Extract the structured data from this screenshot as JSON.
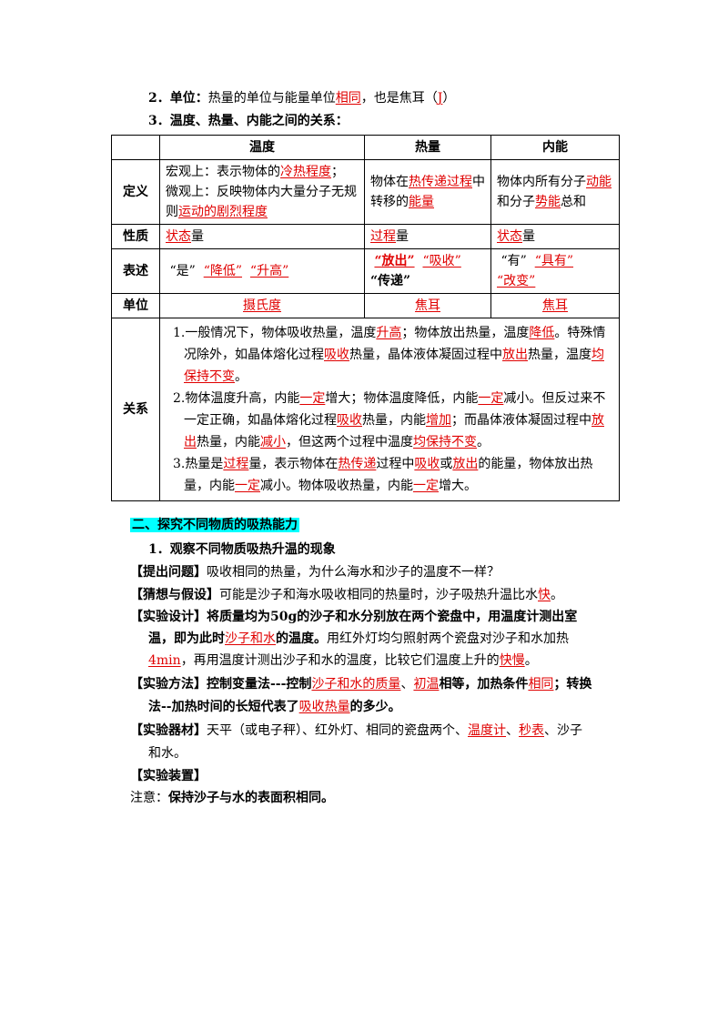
{
  "s2": {
    "pre": "2．",
    "b": "单位：",
    "t1": "热量的单位与能量单位",
    "u1": "相同",
    "t2": "，也是焦耳（",
    "u2": "J",
    "t3": "）"
  },
  "s3": {
    "title": "3．温度、热量、内能之间的关系："
  },
  "table": {
    "headers": [
      "",
      "温度",
      "热量",
      "内能"
    ],
    "rows": {
      "dingyi": {
        "label": "定义",
        "t_a": "宏观上：表示物体的",
        "t_u1": "冷热程度",
        "t_b": "；",
        "t_c": "微观上：反映物体内大量分子无规则",
        "t_u2": "运动的剧烈程度",
        "h_a": "物体在",
        "h_u1": "热传递过程",
        "h_b": "中转移的",
        "h_u2": "能量",
        "n_a": "物体内所有分子",
        "n_u1": "动能",
        "n_b": "和分子",
        "n_u2": "势能",
        "n_c": "总和"
      },
      "xingzhi": {
        "label": "性质",
        "t_u": "状态",
        "t_s": "量",
        "h_u": "过程",
        "h_s": "量",
        "n_u": "状态",
        "n_s": "量"
      },
      "biaoshu": {
        "label": "表述",
        "t_a": "“是”",
        "t_u1": "“降低”",
        "t_u2": "“升高”",
        "h_u1": "“放出”",
        "h_u2": "“吸收”",
        "h_b": "“传递”",
        "n_a": "“有”",
        "n_u1": "“具有”",
        "n_u2": "“改变”"
      },
      "danwei": {
        "label": "单位",
        "t_u": "摄氏度",
        "h_u": "焦耳",
        "n_u": "焦耳"
      },
      "guanxi": {
        "label": "关系",
        "p1": {
          "a": "1.一般情况下，物体吸收热量，温度",
          "u1": "升高",
          "b": "；物体放出热量，温度",
          "u2": "降低",
          "c": "。特殊情况除外，如晶体熔化过程",
          "u3": "吸收",
          "d": "热量，晶体液体凝固过程中",
          "u4": "放出",
          "e": "热量，温度",
          "u5": "均保持不变",
          "f": "。"
        },
        "p2": {
          "a": "2.物体温度升高，内能",
          "u1": "一定",
          "b": "增大；物体温度降低，内能",
          "u2": "一定",
          "c": "减小。但反过来不一定正确，如晶体熔化过程",
          "u3": "吸收",
          "d": "热量，内能",
          "u4": "增加",
          "e": "；而晶体液体凝固过程中",
          "u5": "放出",
          "f": "热量，内能",
          "u6": "减小",
          "g": "，但这两个过程中温度",
          "u7": "均保持不变",
          "h": "。"
        },
        "p3": {
          "a": "3.热量是",
          "u1": "过程",
          "b": "量，表示物体在",
          "u2": "热传递",
          "c": "过程中",
          "u3": "吸收",
          "d": "或",
          "u4": "放出",
          "e": "的能量，物体放出热量，内能",
          "u5": "一定",
          "f": "减小。物体吸收热量，内能",
          "u6": "一定",
          "g": "增大。"
        }
      }
    }
  },
  "sec2": {
    "title": "二、探究不同物质的吸热能力"
  },
  "sub1": {
    "title": "1．观察不同物质吸热升温的现象"
  },
  "q": {
    "tag": "【提出问题】",
    "text": "吸收相同的热量，为什么海水和沙子的温度不一样？"
  },
  "g": {
    "tag": "【猜想与假设】",
    "text": "可能是沙子和海水吸收相同的热量时，沙子吸热升温比水",
    "u": "快",
    "end": "。"
  },
  "d": {
    "tag": "【实验设计】",
    "b1": "将质量均为50g的沙子和水分别放在两个瓷盘中，用温度计测出室",
    "b2": "温，即为此时",
    "u1": "沙子和水",
    "b3": "的温度。",
    "t1": "用红外灯均匀照射两个瓷盘对沙子和水加热",
    "u2": "4min",
    "t2": "，再用温度计测出沙子和水的温度，比较它们温度上升的",
    "u3": "快慢",
    "t3": "。"
  },
  "m": {
    "tag": "【实验方法】",
    "b1": "控制变量法---控制",
    "u1": "沙子和水的质量",
    "s1": "、",
    "u2": "初温",
    "b2": "相等，加热条件",
    "u3": "相同",
    "b3": "；转换",
    "b4": "法--加热时间的长短代表了",
    "u4": "吸收热量",
    "b5": "的多少。"
  },
  "e": {
    "tag": "【实验器材】",
    "t1": "天平（或电子秤）、红外灯、相同的瓷盘两个、",
    "u1": "温度计",
    "s1": "、",
    "u2": "秒表",
    "t2": "、沙子",
    "t3": "和水。"
  },
  "z": {
    "tag": "【实验装置】"
  },
  "note": {
    "pre": "注意：",
    "b": "保持沙子与水的表面积相同。"
  }
}
